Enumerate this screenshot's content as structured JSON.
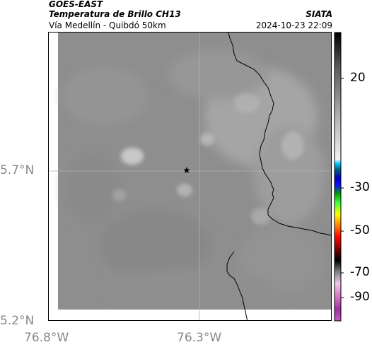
{
  "header": {
    "satellite": "GOES-EAST",
    "product": "Temperatura de Brillo CH13",
    "organization": "SIATA",
    "location": "Vía Medellín - Quibdó 50km",
    "timestamp": "2024-10-23 22:09"
  },
  "map": {
    "lat_ticks": [
      "5.7°N",
      "5.2°N"
    ],
    "lon_ticks": [
      "76.8°W",
      "76.3°W"
    ],
    "marker": "star-marker"
  },
  "colorbar": {
    "labels": [
      "20",
      "-30",
      "-50",
      "-70",
      "-90"
    ]
  }
}
